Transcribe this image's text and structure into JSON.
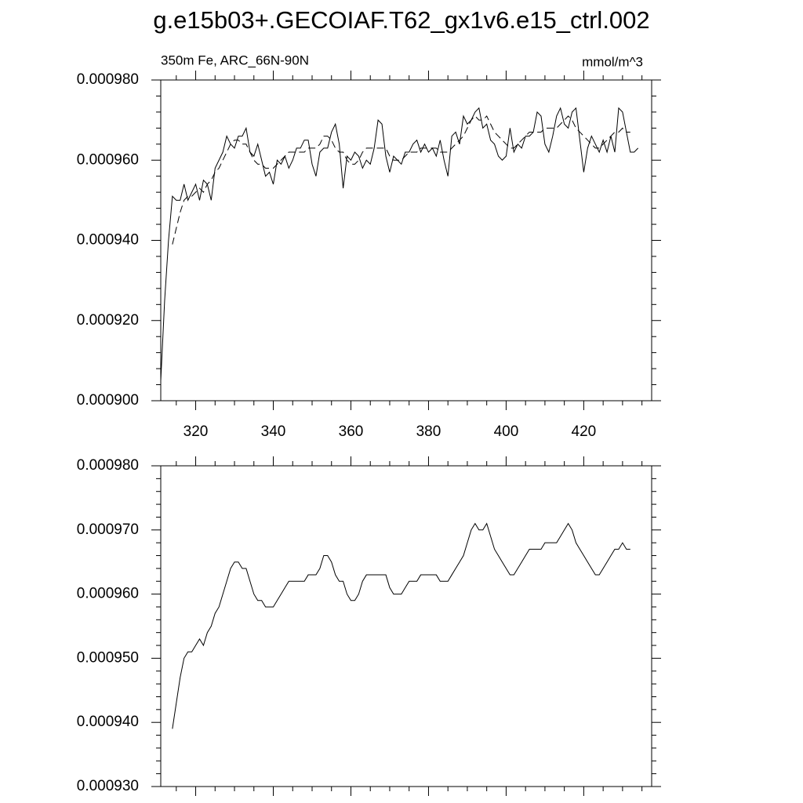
{
  "title": "g.e15b03+.GECOIAF.T62_gx1v6.e15_ctrl.002",
  "chart_data": [
    {
      "type": "line",
      "subtitle": "350m Fe, ARC_66N-90N",
      "units": "mmol/m^3",
      "x": [
        311,
        312,
        313,
        314,
        315,
        316,
        317,
        318,
        319,
        320,
        321,
        322,
        323,
        324,
        325,
        326,
        327,
        328,
        329,
        330,
        331,
        332,
        333,
        334,
        335,
        336,
        337,
        338,
        339,
        340,
        341,
        342,
        343,
        344,
        345,
        346,
        347,
        348,
        349,
        350,
        351,
        352,
        353,
        354,
        355,
        356,
        357,
        358,
        359,
        360,
        361,
        362,
        363,
        364,
        365,
        366,
        367,
        368,
        369,
        370,
        371,
        372,
        373,
        374,
        375,
        376,
        377,
        378,
        379,
        380,
        381,
        382,
        383,
        384,
        385,
        386,
        387,
        388,
        389,
        390,
        391,
        392,
        393,
        394,
        395,
        396,
        397,
        398,
        399,
        400,
        401,
        402,
        403,
        404,
        405,
        406,
        407,
        408,
        409,
        410,
        411,
        412,
        413,
        414,
        415,
        416,
        417,
        418,
        419,
        420,
        421,
        422,
        423,
        424,
        425,
        426,
        427,
        428,
        429,
        430,
        431,
        432,
        433,
        434
      ],
      "series": [
        {
          "color": "#000000",
          "style": "solid",
          "values": [
            0.000905,
            0.000925,
            0.00094,
            0.000951,
            0.00095,
            0.00095,
            0.000954,
            0.00095,
            0.000952,
            0.000954,
            0.00095,
            0.000955,
            0.000954,
            0.00095,
            0.000958,
            0.00096,
            0.000962,
            0.000966,
            0.000964,
            0.000963,
            0.000966,
            0.000966,
            0.000968,
            0.000962,
            0.000961,
            0.000964,
            0.00096,
            0.000956,
            0.000957,
            0.000954,
            0.00096,
            0.000959,
            0.000961,
            0.000958,
            0.00096,
            0.000963,
            0.000963,
            0.000965,
            0.000965,
            0.000959,
            0.000956,
            0.000962,
            0.000963,
            0.000963,
            0.000967,
            0.000969,
            0.000964,
            0.000953,
            0.000961,
            0.00096,
            0.000962,
            0.000961,
            0.000958,
            0.00096,
            0.000959,
            0.000963,
            0.00097,
            0.000969,
            0.000961,
            0.000957,
            0.000961,
            0.00096,
            0.000959,
            0.000962,
            0.000962,
            0.000964,
            0.000965,
            0.000962,
            0.000964,
            0.000962,
            0.000963,
            0.000961,
            0.000965,
            0.00096,
            0.000956,
            0.000966,
            0.000967,
            0.000964,
            0.000971,
            0.000969,
            0.00097,
            0.000972,
            0.000973,
            0.000968,
            0.000969,
            0.000965,
            0.000964,
            0.000961,
            0.00096,
            0.000961,
            0.000968,
            0.000962,
            0.000964,
            0.000963,
            0.000966,
            0.000966,
            0.000967,
            0.000972,
            0.000971,
            0.000964,
            0.000962,
            0.000966,
            0.000971,
            0.000973,
            0.000969,
            0.000968,
            0.000972,
            0.000973,
            0.000965,
            0.000957,
            0.000963,
            0.000966,
            0.000964,
            0.000962,
            0.000965,
            0.000962,
            0.000966,
            0.000962,
            0.000973,
            0.000972,
            0.000967,
            0.000962,
            0.000962,
            0.000963
          ]
        },
        {
          "color": "#000000",
          "style": "dashed",
          "values": [
            null,
            null,
            null,
            0.000939,
            0.000943,
            0.000947,
            0.00095,
            0.000951,
            0.000951,
            0.000952,
            0.000953,
            0.000952,
            0.000954,
            0.000955,
            0.000957,
            0.000958,
            0.00096,
            0.000962,
            0.000964,
            0.000965,
            0.000965,
            0.000964,
            0.000964,
            0.000962,
            0.00096,
            0.000959,
            0.000959,
            0.000958,
            0.000958,
            0.000958,
            0.000959,
            0.00096,
            0.000961,
            0.000962,
            0.000962,
            0.000962,
            0.000962,
            0.000962,
            0.000963,
            0.000963,
            0.000963,
            0.000964,
            0.000966,
            0.000966,
            0.000965,
            0.000963,
            0.000962,
            0.000962,
            0.00096,
            0.000959,
            0.000959,
            0.00096,
            0.000962,
            0.000963,
            0.000963,
            0.000963,
            0.000963,
            0.000963,
            0.000963,
            0.000961,
            0.00096,
            0.00096,
            0.00096,
            0.000961,
            0.000962,
            0.000962,
            0.000962,
            0.000963,
            0.000963,
            0.000963,
            0.000963,
            0.000963,
            0.000962,
            0.000962,
            0.000962,
            0.000963,
            0.000964,
            0.000965,
            0.000966,
            0.000968,
            0.00097,
            0.000971,
            0.00097,
            0.00097,
            0.000971,
            0.000969,
            0.000967,
            0.000966,
            0.000965,
            0.000964,
            0.000963,
            0.000963,
            0.000964,
            0.000965,
            0.000966,
            0.000967,
            0.000967,
            0.000967,
            0.000967,
            0.000968,
            0.000968,
            0.000968,
            0.000968,
            0.000969,
            0.00097,
            0.000971,
            0.00097,
            0.000968,
            0.000967,
            0.000966,
            0.000965,
            0.000964,
            0.000963,
            0.000963,
            0.000964,
            0.000965,
            0.000966,
            0.000967,
            0.000967,
            0.000968,
            0.000967,
            0.000967,
            null,
            null
          ]
        }
      ],
      "xlim": [
        311,
        437.5
      ],
      "ylim": [
        0.0009,
        0.00098
      ],
      "xticks": [
        320,
        340,
        360,
        380,
        400,
        420
      ],
      "yticks": [
        {
          "value": 0.0009,
          "label": "0.000900"
        },
        {
          "value": 0.00092,
          "label": "0.000920"
        },
        {
          "value": 0.00094,
          "label": "0.000940"
        },
        {
          "value": 0.00096,
          "label": "0.000960"
        },
        {
          "value": 0.00098,
          "label": "0.000980"
        }
      ]
    },
    {
      "type": "line",
      "xtick_labels": false,
      "x": [
        314,
        315,
        316,
        317,
        318,
        319,
        320,
        321,
        322,
        323,
        324,
        325,
        326,
        327,
        328,
        329,
        330,
        331,
        332,
        333,
        334,
        335,
        336,
        337,
        338,
        339,
        340,
        341,
        342,
        343,
        344,
        345,
        346,
        347,
        348,
        349,
        350,
        351,
        352,
        353,
        354,
        355,
        356,
        357,
        358,
        359,
        360,
        361,
        362,
        363,
        364,
        365,
        366,
        367,
        368,
        369,
        370,
        371,
        372,
        373,
        374,
        375,
        376,
        377,
        378,
        379,
        380,
        381,
        382,
        383,
        384,
        385,
        386,
        387,
        388,
        389,
        390,
        391,
        392,
        393,
        394,
        395,
        396,
        397,
        398,
        399,
        400,
        401,
        402,
        403,
        404,
        405,
        406,
        407,
        408,
        409,
        410,
        411,
        412,
        413,
        414,
        415,
        416,
        417,
        418,
        419,
        420,
        421,
        422,
        423,
        424,
        425,
        426,
        427,
        428,
        429,
        430,
        431,
        432
      ],
      "series": [
        {
          "color": "#000000",
          "style": "solid",
          "values": [
            0.000939,
            0.000943,
            0.000947,
            0.00095,
            0.000951,
            0.000951,
            0.000952,
            0.000953,
            0.000952,
            0.000954,
            0.000955,
            0.000957,
            0.000958,
            0.00096,
            0.000962,
            0.000964,
            0.000965,
            0.000965,
            0.000964,
            0.000964,
            0.000962,
            0.00096,
            0.000959,
            0.000959,
            0.000958,
            0.000958,
            0.000958,
            0.000959,
            0.00096,
            0.000961,
            0.000962,
            0.000962,
            0.000962,
            0.000962,
            0.000962,
            0.000963,
            0.000963,
            0.000963,
            0.000964,
            0.000966,
            0.000966,
            0.000965,
            0.000963,
            0.000962,
            0.000962,
            0.00096,
            0.000959,
            0.000959,
            0.00096,
            0.000962,
            0.000963,
            0.000963,
            0.000963,
            0.000963,
            0.000963,
            0.000963,
            0.000961,
            0.00096,
            0.00096,
            0.00096,
            0.000961,
            0.000962,
            0.000962,
            0.000962,
            0.000963,
            0.000963,
            0.000963,
            0.000963,
            0.000963,
            0.000962,
            0.000962,
            0.000962,
            0.000963,
            0.000964,
            0.000965,
            0.000966,
            0.000968,
            0.00097,
            0.000971,
            0.00097,
            0.00097,
            0.000971,
            0.000969,
            0.000967,
            0.000966,
            0.000965,
            0.000964,
            0.000963,
            0.000963,
            0.000964,
            0.000965,
            0.000966,
            0.000967,
            0.000967,
            0.000967,
            0.000967,
            0.000968,
            0.000968,
            0.000968,
            0.000968,
            0.000969,
            0.00097,
            0.000971,
            0.00097,
            0.000968,
            0.000967,
            0.000966,
            0.000965,
            0.000964,
            0.000963,
            0.000963,
            0.000964,
            0.000965,
            0.000966,
            0.000967,
            0.000967,
            0.000968,
            0.000967,
            0.000967
          ]
        }
      ],
      "xlim": [
        311,
        437.5
      ],
      "ylim": [
        0.00093,
        0.00098
      ],
      "xticks": [
        320,
        340,
        360,
        380,
        400,
        420
      ],
      "yticks": [
        {
          "value": 0.00093,
          "label": "0.000930"
        },
        {
          "value": 0.00094,
          "label": "0.000940"
        },
        {
          "value": 0.00095,
          "label": "0.000950"
        },
        {
          "value": 0.00096,
          "label": "0.000960"
        },
        {
          "value": 0.00097,
          "label": "0.000970"
        },
        {
          "value": 0.00098,
          "label": "0.000980"
        }
      ]
    }
  ]
}
